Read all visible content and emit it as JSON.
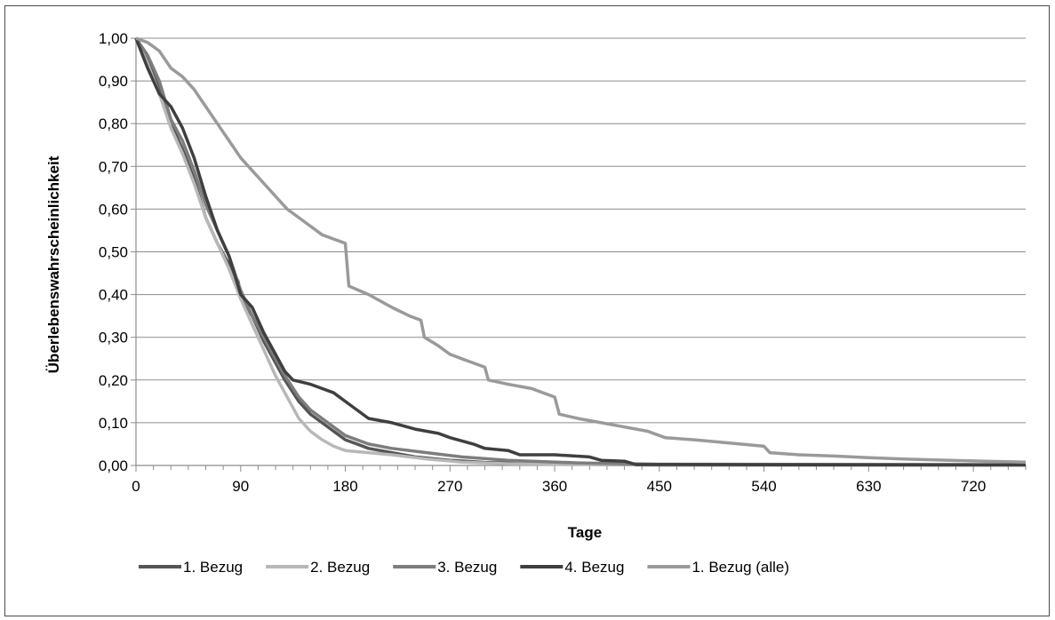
{
  "chart_data": {
    "type": "line",
    "title": "",
    "xlabel": "Tage",
    "ylabel": "Überlebenswahrscheinlichkeit",
    "xlim": [
      0,
      765
    ],
    "ylim": [
      0,
      1
    ],
    "x_ticks": [
      0,
      90,
      180,
      270,
      360,
      450,
      540,
      630,
      720
    ],
    "x_tick_labels": [
      "0",
      "90",
      "180",
      "270",
      "360",
      "450",
      "540",
      "630",
      "720"
    ],
    "y_ticks": [
      0,
      0.1,
      0.2,
      0.3,
      0.4,
      0.5,
      0.6,
      0.7,
      0.8,
      0.9,
      1.0
    ],
    "y_tick_labels": [
      "0,00",
      "0,10",
      "0,20",
      "0,30",
      "0,40",
      "0,50",
      "0,60",
      "0,70",
      "0,80",
      "0,90",
      "1,00"
    ],
    "grid": true,
    "legend_position": "bottom",
    "series": [
      {
        "name": "1. Bezug",
        "color": "#555555",
        "points": [
          [
            0,
            1.0
          ],
          [
            10,
            0.95
          ],
          [
            20,
            0.88
          ],
          [
            30,
            0.8
          ],
          [
            40,
            0.74
          ],
          [
            50,
            0.67
          ],
          [
            60,
            0.58
          ],
          [
            70,
            0.52
          ],
          [
            80,
            0.47
          ],
          [
            88,
            0.43
          ],
          [
            90,
            0.39
          ],
          [
            100,
            0.35
          ],
          [
            110,
            0.29
          ],
          [
            120,
            0.24
          ],
          [
            128,
            0.2
          ],
          [
            140,
            0.15
          ],
          [
            150,
            0.12
          ],
          [
            160,
            0.1
          ],
          [
            170,
            0.08
          ],
          [
            180,
            0.06
          ],
          [
            190,
            0.05
          ],
          [
            200,
            0.04
          ],
          [
            220,
            0.03
          ],
          [
            240,
            0.02
          ],
          [
            270,
            0.012
          ],
          [
            300,
            0.007
          ],
          [
            350,
            0.004
          ],
          [
            400,
            0.002
          ],
          [
            450,
            0.001
          ],
          [
            765,
            0.001
          ]
        ]
      },
      {
        "name": "2. Bezug",
        "color": "#b8b8b8",
        "points": [
          [
            0,
            1.0
          ],
          [
            10,
            0.94
          ],
          [
            20,
            0.87
          ],
          [
            30,
            0.79
          ],
          [
            40,
            0.73
          ],
          [
            50,
            0.66
          ],
          [
            60,
            0.58
          ],
          [
            70,
            0.52
          ],
          [
            80,
            0.46
          ],
          [
            90,
            0.39
          ],
          [
            100,
            0.33
          ],
          [
            110,
            0.27
          ],
          [
            120,
            0.21
          ],
          [
            130,
            0.16
          ],
          [
            140,
            0.11
          ],
          [
            150,
            0.08
          ],
          [
            160,
            0.06
          ],
          [
            170,
            0.045
          ],
          [
            180,
            0.035
          ],
          [
            200,
            0.03
          ],
          [
            220,
            0.025
          ],
          [
            250,
            0.015
          ],
          [
            280,
            0.008
          ],
          [
            320,
            0.004
          ],
          [
            380,
            0.002
          ],
          [
            765,
            0.001
          ]
        ]
      },
      {
        "name": "3. Bezug",
        "color": "#7d7d7d",
        "points": [
          [
            0,
            1.0
          ],
          [
            10,
            0.96
          ],
          [
            20,
            0.9
          ],
          [
            30,
            0.81
          ],
          [
            40,
            0.76
          ],
          [
            50,
            0.69
          ],
          [
            60,
            0.61
          ],
          [
            70,
            0.55
          ],
          [
            80,
            0.49
          ],
          [
            90,
            0.41
          ],
          [
            100,
            0.35
          ],
          [
            110,
            0.3
          ],
          [
            120,
            0.25
          ],
          [
            128,
            0.21
          ],
          [
            140,
            0.16
          ],
          [
            150,
            0.13
          ],
          [
            160,
            0.11
          ],
          [
            170,
            0.09
          ],
          [
            180,
            0.07
          ],
          [
            200,
            0.05
          ],
          [
            220,
            0.04
          ],
          [
            250,
            0.03
          ],
          [
            280,
            0.02
          ],
          [
            320,
            0.012
          ],
          [
            380,
            0.006
          ],
          [
            450,
            0.003
          ],
          [
            765,
            0.002
          ]
        ]
      },
      {
        "name": "4. Bezug",
        "color": "#3f3f3f",
        "points": [
          [
            0,
            1.0
          ],
          [
            10,
            0.93
          ],
          [
            20,
            0.87
          ],
          [
            30,
            0.84
          ],
          [
            40,
            0.79
          ],
          [
            50,
            0.72
          ],
          [
            60,
            0.63
          ],
          [
            70,
            0.55
          ],
          [
            80,
            0.49
          ],
          [
            90,
            0.4
          ],
          [
            100,
            0.37
          ],
          [
            110,
            0.31
          ],
          [
            120,
            0.26
          ],
          [
            128,
            0.22
          ],
          [
            135,
            0.2
          ],
          [
            150,
            0.19
          ],
          [
            160,
            0.18
          ],
          [
            170,
            0.17
          ],
          [
            180,
            0.15
          ],
          [
            190,
            0.13
          ],
          [
            200,
            0.11
          ],
          [
            220,
            0.1
          ],
          [
            240,
            0.085
          ],
          [
            260,
            0.075
          ],
          [
            270,
            0.065
          ],
          [
            290,
            0.05
          ],
          [
            300,
            0.04
          ],
          [
            320,
            0.035
          ],
          [
            330,
            0.025
          ],
          [
            360,
            0.025
          ],
          [
            390,
            0.02
          ],
          [
            400,
            0.012
          ],
          [
            420,
            0.01
          ],
          [
            430,
            0.002
          ],
          [
            765,
            0.001
          ]
        ]
      },
      {
        "name": "1. Bezug (alle)",
        "color": "#9a9a9a",
        "points": [
          [
            0,
            1.0
          ],
          [
            10,
            0.99
          ],
          [
            20,
            0.97
          ],
          [
            30,
            0.93
          ],
          [
            40,
            0.91
          ],
          [
            50,
            0.88
          ],
          [
            60,
            0.84
          ],
          [
            70,
            0.8
          ],
          [
            80,
            0.76
          ],
          [
            90,
            0.72
          ],
          [
            100,
            0.69
          ],
          [
            110,
            0.66
          ],
          [
            120,
            0.63
          ],
          [
            130,
            0.6
          ],
          [
            140,
            0.58
          ],
          [
            150,
            0.56
          ],
          [
            160,
            0.54
          ],
          [
            170,
            0.53
          ],
          [
            180,
            0.52
          ],
          [
            183,
            0.42
          ],
          [
            200,
            0.4
          ],
          [
            220,
            0.37
          ],
          [
            235,
            0.35
          ],
          [
            245,
            0.34
          ],
          [
            248,
            0.3
          ],
          [
            260,
            0.28
          ],
          [
            270,
            0.26
          ],
          [
            280,
            0.25
          ],
          [
            290,
            0.24
          ],
          [
            300,
            0.23
          ],
          [
            303,
            0.2
          ],
          [
            320,
            0.19
          ],
          [
            340,
            0.18
          ],
          [
            360,
            0.16
          ],
          [
            364,
            0.12
          ],
          [
            380,
            0.11
          ],
          [
            400,
            0.1
          ],
          [
            420,
            0.09
          ],
          [
            440,
            0.08
          ],
          [
            450,
            0.07
          ],
          [
            455,
            0.065
          ],
          [
            480,
            0.06
          ],
          [
            500,
            0.055
          ],
          [
            540,
            0.045
          ],
          [
            545,
            0.03
          ],
          [
            570,
            0.025
          ],
          [
            600,
            0.022
          ],
          [
            630,
            0.018
          ],
          [
            660,
            0.015
          ],
          [
            700,
            0.012
          ],
          [
            730,
            0.01
          ],
          [
            765,
            0.008
          ]
        ]
      }
    ]
  }
}
